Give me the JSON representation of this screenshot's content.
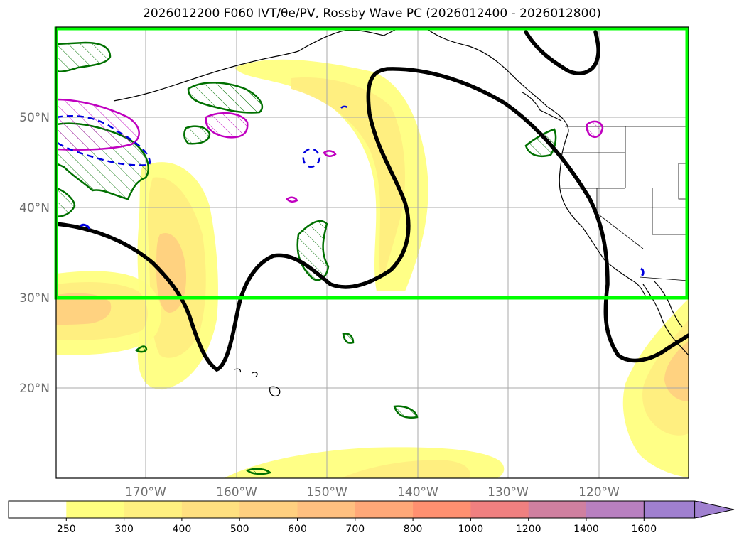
{
  "title": "2026012200 F060 IVT/θe/PV, Rossby Wave PC (2026012400 - 2026012800)",
  "map": {
    "lat_labels": [
      "50°N",
      "40°N",
      "30°N",
      "20°N"
    ],
    "lon_labels": [
      "170°W",
      "160°W",
      "150°W",
      "140°W",
      "130°W",
      "120°W"
    ],
    "box_color": "#00ff00",
    "ivt_fill_colors": [
      "#ffff80",
      "#ffee80",
      "#ffd080",
      "#ffb070"
    ],
    "rossby_line_color": "#000000",
    "pv_contour_color": "#007000",
    "theta_e_warm_color": "#c000c0",
    "theta_e_cold_color": "#0000e0"
  },
  "colorbar": {
    "levels": [
      "250",
      "300",
      "400",
      "500",
      "600",
      "700",
      "800",
      "1000",
      "1200",
      "1400",
      "1600"
    ],
    "colors": [
      "#ffffff",
      "#ffff80",
      "#fff080",
      "#ffe080",
      "#ffd080",
      "#ffc080",
      "#ffa878",
      "#ff9070",
      "#f08080",
      "#d080a0",
      "#b880c0",
      "#a080d0"
    ]
  }
}
